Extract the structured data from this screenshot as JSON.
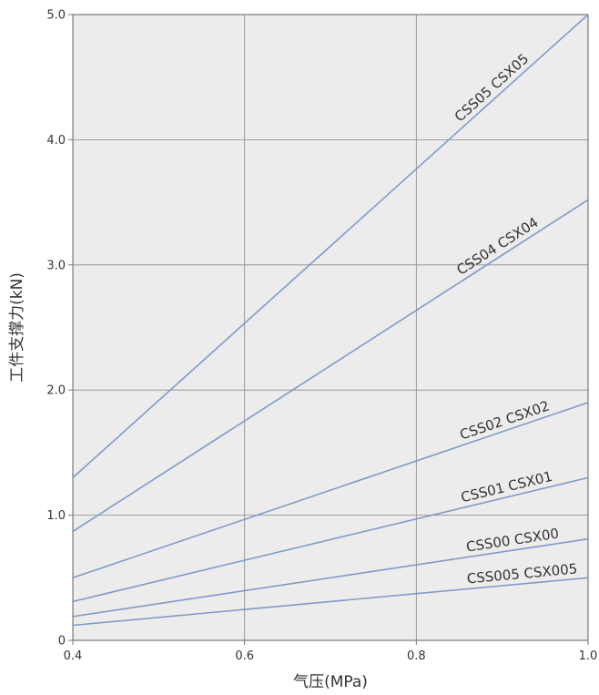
{
  "chart_data": {
    "type": "line",
    "title": "",
    "xlabel": "气压(MPa)",
    "ylabel": "工件支撑力(kN)",
    "xlim": [
      0.4,
      1.0
    ],
    "ylim": [
      0,
      5.0
    ],
    "x_ticks": [
      "0.4",
      "0.6",
      "0.8",
      "1.0"
    ],
    "y_ticks": [
      "0",
      "1.0",
      "2.0",
      "3.0",
      "4.0",
      "5.0"
    ],
    "grid": true,
    "colors": {
      "plot_background": "#ececec",
      "line": "#7f9ac7",
      "grid": "#8a8a8a",
      "frame": "#7a7a7a"
    },
    "series": [
      {
        "name": "CSS05 CSX05",
        "x": [
          0.4,
          1.0
        ],
        "y": [
          1.3,
          5.0
        ]
      },
      {
        "name": "CSS04 CSX04",
        "x": [
          0.4,
          1.0
        ],
        "y": [
          0.87,
          3.52
        ]
      },
      {
        "name": "CSS02 CSX02",
        "x": [
          0.4,
          1.0
        ],
        "y": [
          0.5,
          1.9
        ]
      },
      {
        "name": "CSS01 CSX01",
        "x": [
          0.4,
          1.0
        ],
        "y": [
          0.31,
          1.3
        ]
      },
      {
        "name": "CSS00 CSX00",
        "x": [
          0.4,
          1.0
        ],
        "y": [
          0.19,
          0.81
        ]
      },
      {
        "name": "CSS005 CSX005",
        "x": [
          0.4,
          1.0
        ],
        "y": [
          0.12,
          0.5
        ]
      }
    ]
  }
}
